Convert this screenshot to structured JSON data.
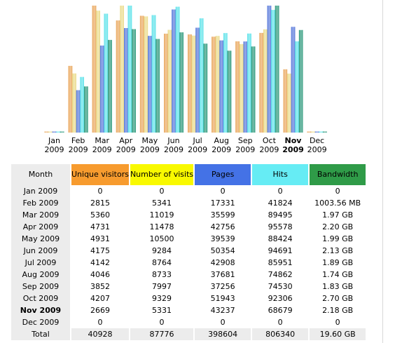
{
  "colors": {
    "visitors": "#e8a050",
    "visits": "#e8d880",
    "pages": "#4a6ed8",
    "hits": "#50e0e8",
    "bandwidth": "#1a9070"
  },
  "chart_data": {
    "type": "bar",
    "categories": [
      "Jan",
      "Feb",
      "Mar",
      "Apr",
      "May",
      "Jun",
      "Jul",
      "Aug",
      "Sep",
      "Oct",
      "Nov",
      "Dec"
    ],
    "years": [
      "2009",
      "2009",
      "2009",
      "2009",
      "2009",
      "2009",
      "2009",
      "2009",
      "2009",
      "2009",
      "2009",
      "2009"
    ],
    "current_month_index": 10,
    "series": [
      {
        "name": "Unique visitors",
        "key": "visitors",
        "values": [
          0,
          2815,
          5360,
          4731,
          4931,
          4175,
          4142,
          4046,
          3852,
          4207,
          2669,
          0
        ]
      },
      {
        "name": "Number of visits",
        "key": "visits",
        "values": [
          0,
          5341,
          11019,
          11478,
          10500,
          9284,
          8764,
          8733,
          7997,
          9329,
          5331,
          0
        ]
      },
      {
        "name": "Pages",
        "key": "pages",
        "values": [
          0,
          17331,
          35599,
          42756,
          39539,
          50354,
          42908,
          37681,
          37256,
          51943,
          43237,
          0
        ]
      },
      {
        "name": "Hits",
        "key": "hits",
        "values": [
          0,
          41824,
          89495,
          95578,
          88424,
          94691,
          85951,
          74862,
          74530,
          92306,
          68679,
          0
        ]
      },
      {
        "name": "Bandwidth",
        "key": "bandwidth_gb",
        "values": [
          0,
          0.98,
          1.97,
          2.2,
          1.99,
          2.13,
          1.89,
          1.74,
          1.83,
          2.7,
          2.18,
          0
        ]
      }
    ]
  },
  "table": {
    "headers": {
      "month": "Month",
      "visitors": "Unique visitors",
      "visits": "Number of visits",
      "pages": "Pages",
      "hits": "Hits",
      "bandwidth": "Bandwidth"
    },
    "rows": [
      {
        "month": "Jan 2009",
        "visitors": "0",
        "visits": "0",
        "pages": "0",
        "hits": "0",
        "bandwidth": "0"
      },
      {
        "month": "Feb 2009",
        "visitors": "2815",
        "visits": "5341",
        "pages": "17331",
        "hits": "41824",
        "bandwidth": "1003.56 MB"
      },
      {
        "month": "Mar 2009",
        "visitors": "5360",
        "visits": "11019",
        "pages": "35599",
        "hits": "89495",
        "bandwidth": "1.97 GB"
      },
      {
        "month": "Apr 2009",
        "visitors": "4731",
        "visits": "11478",
        "pages": "42756",
        "hits": "95578",
        "bandwidth": "2.20 GB"
      },
      {
        "month": "May 2009",
        "visitors": "4931",
        "visits": "10500",
        "pages": "39539",
        "hits": "88424",
        "bandwidth": "1.99 GB"
      },
      {
        "month": "Jun 2009",
        "visitors": "4175",
        "visits": "9284",
        "pages": "50354",
        "hits": "94691",
        "bandwidth": "2.13 GB"
      },
      {
        "month": "Jul 2009",
        "visitors": "4142",
        "visits": "8764",
        "pages": "42908",
        "hits": "85951",
        "bandwidth": "1.89 GB"
      },
      {
        "month": "Aug 2009",
        "visitors": "4046",
        "visits": "8733",
        "pages": "37681",
        "hits": "74862",
        "bandwidth": "1.74 GB"
      },
      {
        "month": "Sep 2009",
        "visitors": "3852",
        "visits": "7997",
        "pages": "37256",
        "hits": "74530",
        "bandwidth": "1.83 GB"
      },
      {
        "month": "Oct 2009",
        "visitors": "4207",
        "visits": "9329",
        "pages": "51943",
        "hits": "92306",
        "bandwidth": "2.70 GB"
      },
      {
        "month": "Nov 2009",
        "visitors": "2669",
        "visits": "5331",
        "pages": "43237",
        "hits": "68679",
        "bandwidth": "2.18 GB",
        "current": true
      },
      {
        "month": "Dec 2009",
        "visitors": "0",
        "visits": "0",
        "pages": "0",
        "hits": "0",
        "bandwidth": "0"
      }
    ],
    "total": {
      "month": "Total",
      "visitors": "40928",
      "visits": "87776",
      "pages": "398604",
      "hits": "806340",
      "bandwidth": "19.60 GB"
    }
  }
}
